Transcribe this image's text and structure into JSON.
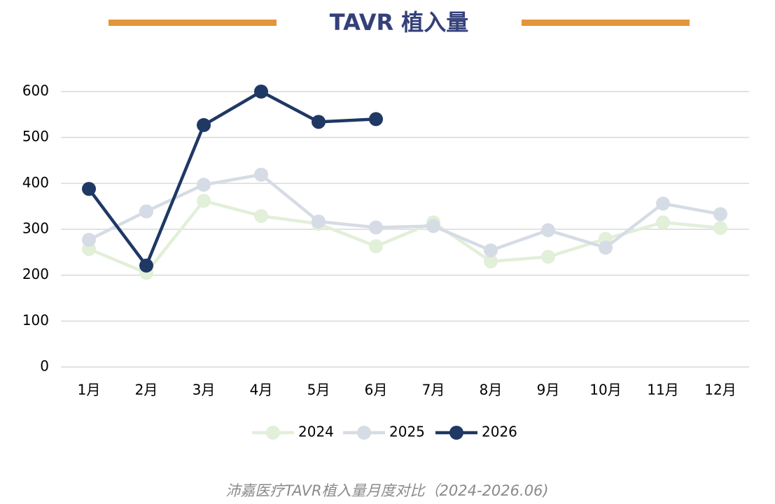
{
  "chart_data": {
    "type": "line",
    "title": "TAVR 植入量",
    "caption": "沛嘉医疗TAVR植入量月度对比（2024-2026.06)",
    "categories": [
      "1月",
      "2月",
      "3月",
      "4月",
      "5月",
      "6月",
      "7月",
      "8月",
      "9月",
      "10月",
      "11月",
      "12月"
    ],
    "series": [
      {
        "name": "2024",
        "color": "#e2efd9",
        "values": [
          257,
          205,
          362,
          329,
          312,
          263,
          315,
          230,
          240,
          279,
          315,
          303
        ]
      },
      {
        "name": "2025",
        "color": "#d6dce5",
        "values": [
          277,
          339,
          397,
          419,
          317,
          304,
          307,
          254,
          298,
          260,
          356,
          333
        ]
      },
      {
        "name": "2026",
        "color": "#1f3864",
        "values": [
          388,
          221,
          527,
          600,
          534,
          540,
          null,
          null,
          null,
          null,
          null,
          null
        ]
      }
    ],
    "ylim": [
      0,
      600
    ],
    "yticks": [
      0,
      100,
      200,
      300,
      400,
      500,
      600
    ],
    "grid": true
  }
}
